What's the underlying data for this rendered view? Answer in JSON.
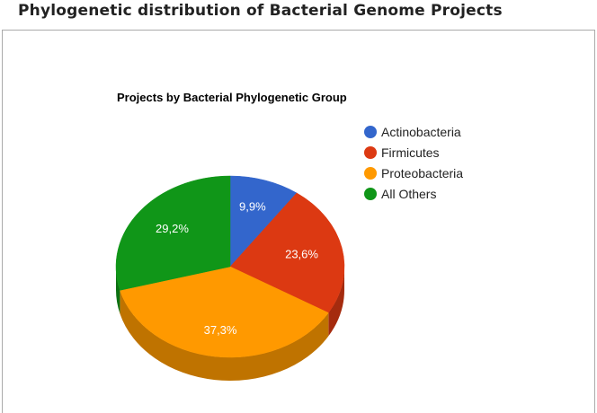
{
  "page": {
    "title": "Phylogenetic distribution of Bacterial Genome Projects"
  },
  "chart_data": {
    "type": "pie",
    "title": "Projects by Bacterial Phylogenetic Group",
    "legend_position": "right",
    "three_d": true,
    "slices": [
      {
        "name": "Actinobacteria",
        "value": 9.9,
        "label": "9,9%",
        "color": "#3366cc",
        "side_color": "#274d99"
      },
      {
        "name": "Firmicutes",
        "value": 23.6,
        "label": "23,6%",
        "color": "#dc3912",
        "side_color": "#a52b0e"
      },
      {
        "name": "Proteobacteria",
        "value": 37.3,
        "label": "37,3%",
        "color": "#ff9900",
        "side_color": "#bf7300"
      },
      {
        "name": "All Others",
        "value": 29.2,
        "label": "29,2%",
        "color": "#109618",
        "side_color": "#0c7112"
      }
    ]
  }
}
